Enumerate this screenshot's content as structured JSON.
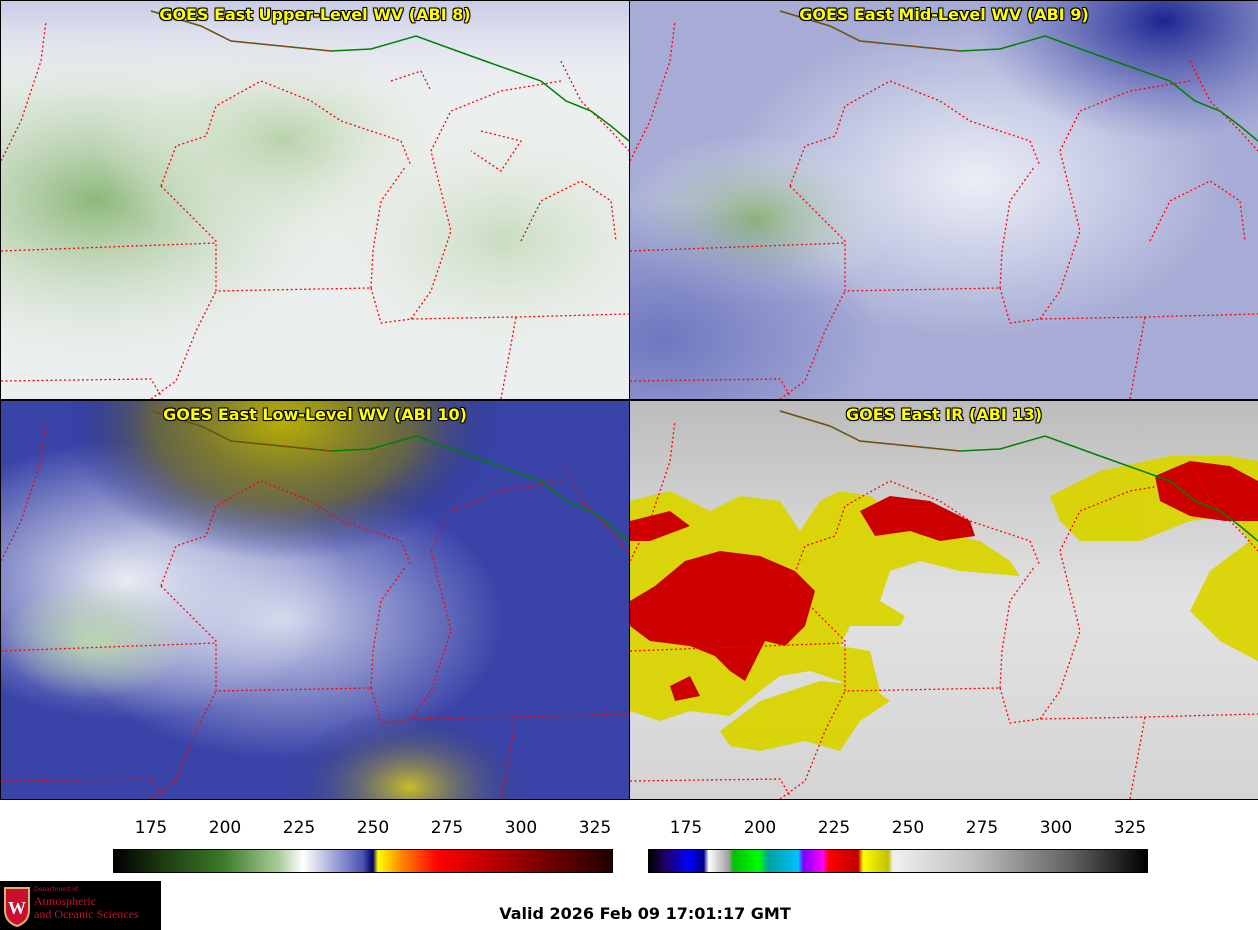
{
  "panels": [
    {
      "title": "GOES East Upper-Level WV (ABI 8)"
    },
    {
      "title": "GOES East Mid-Level WV (ABI 9)"
    },
    {
      "title": "GOES East Low-Level WV (ABI 10)"
    },
    {
      "title": "GOES East IR (ABI 13)"
    }
  ],
  "colorbars": [
    {
      "ticks": [
        "175",
        "200",
        "225",
        "250",
        "275",
        "300",
        "325"
      ]
    },
    {
      "ticks": [
        "175",
        "200",
        "225",
        "250",
        "275",
        "300",
        "325"
      ]
    }
  ],
  "valid_time": "Valid 2026 Feb 09 17:01:17 GMT",
  "logo": {
    "dept": "Department of",
    "line1": "Atmospheric",
    "line2": "and Oceanic Sciences"
  },
  "colors": {
    "border_state": "#ff0000",
    "border_country": "#008000",
    "title_text": "#ffff00"
  }
}
